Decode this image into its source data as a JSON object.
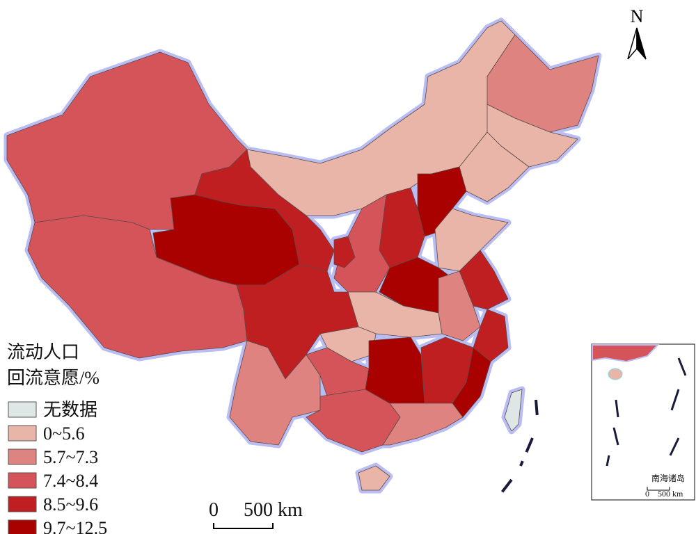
{
  "legend": {
    "title": [
      "流动人口",
      "回流意愿/%"
    ],
    "items": [
      {
        "label": "无数据",
        "color": "#dfe6e6"
      },
      {
        "label": "0~5.6",
        "color": "#e8b5a8"
      },
      {
        "label": "5.7~7.3",
        "color": "#df8380"
      },
      {
        "label": "7.4~8.4",
        "color": "#d45459"
      },
      {
        "label": "8.5~9.6",
        "color": "#c01f22"
      },
      {
        "label": "9.7~12.5",
        "color": "#a90000"
      }
    ]
  },
  "north": "N",
  "scale_bar": [
    "0",
    "500 km"
  ],
  "inset": {
    "label": "南海诸岛",
    "scale_bar": [
      "0",
      "500 km"
    ]
  }
}
